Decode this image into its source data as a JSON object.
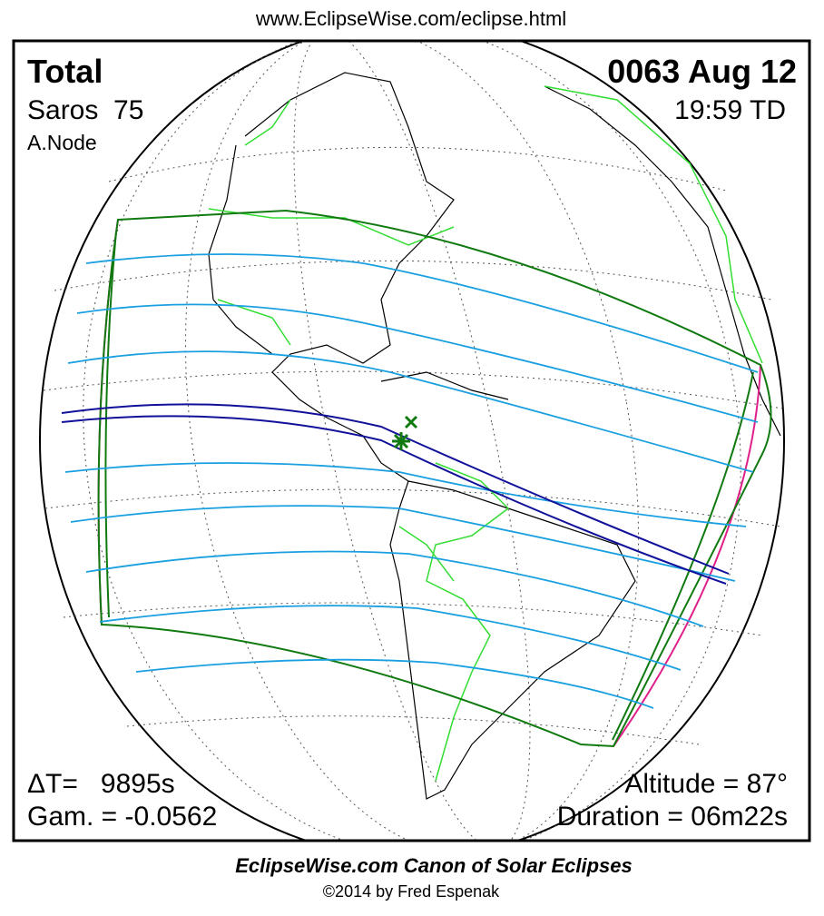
{
  "header": {
    "url": "www.EclipseWise.com/eclipse.html"
  },
  "eclipse": {
    "type": "Total",
    "saros": "Saros  75",
    "node": "A.Node",
    "date": "0063 Aug 12",
    "time": "19:59 TD",
    "delta_t": "ΔT=   9895s",
    "gamma": "Gam. = -0.0562",
    "altitude": "Altitude = 87°",
    "duration": "Duration = 06m22s"
  },
  "footer": {
    "title": "EclipseWise.com Canon of Solar Eclipses",
    "copyright": "©2014 by Fred Espenak"
  }
}
